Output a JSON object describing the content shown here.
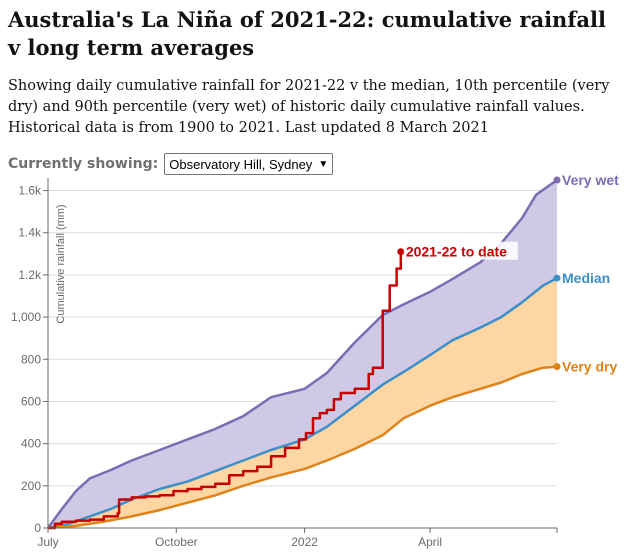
{
  "header": {
    "title": "Australia's La Niña of 2021-22: cumulative rainfall v long term averages",
    "subtitle": "Showing daily cumulative rainfall for 2021-22 v the median, 10th percentile (very dry) and 90th percentile (very wet) of historic daily cumulative rainfall values. Historical data is from 1900 to 2021. Last updated 8 March 2021"
  },
  "selector": {
    "label": "Currently showing:",
    "selected": "Observatory Hill, Sydney"
  },
  "colors": {
    "very_wet": "#7b6cb4",
    "median": "#3d8fc8",
    "very_dry": "#e0821a",
    "to_date": "#c70000",
    "wet_band": "#cfc9e6",
    "dry_band": "#fdd7a3",
    "axis": "#6b6b6b",
    "grid": "#dcdcdc"
  },
  "chart_data": {
    "type": "line",
    "ylabel": "Cumulative rainfall (mm)",
    "ylim": [
      0,
      1650
    ],
    "xlim": [
      0,
      365
    ],
    "x_unit": "day of season starting 1 July",
    "y_ticks": [
      {
        "value": 0,
        "label": "0"
      },
      {
        "value": 200,
        "label": "200"
      },
      {
        "value": 400,
        "label": "400"
      },
      {
        "value": 600,
        "label": "600"
      },
      {
        "value": 800,
        "label": "800"
      },
      {
        "value": 1000,
        "label": "1,000"
      },
      {
        "value": 1200,
        "label": "1.2k"
      },
      {
        "value": 1400,
        "label": "1.4k"
      },
      {
        "value": 1600,
        "label": "1.6k"
      }
    ],
    "x_ticks": [
      {
        "value": 0,
        "label": "July"
      },
      {
        "value": 92,
        "label": "October"
      },
      {
        "value": 184,
        "label": "2022"
      },
      {
        "value": 274,
        "label": "April"
      }
    ],
    "fill_bands": true,
    "grid": true,
    "series": [
      {
        "name": "Very wet",
        "key": "very_wet",
        "x": [
          0,
          10,
          20,
          30,
          45,
          60,
          80,
          100,
          120,
          140,
          160,
          184,
          200,
          220,
          240,
          255,
          274,
          290,
          310,
          325,
          340,
          350,
          365
        ],
        "y": [
          0,
          90,
          175,
          235,
          275,
          320,
          370,
          420,
          470,
          530,
          620,
          660,
          735,
          880,
          1010,
          1060,
          1120,
          1180,
          1260,
          1350,
          1470,
          1580,
          1650
        ]
      },
      {
        "name": "Median",
        "key": "median",
        "x": [
          0,
          15,
          30,
          45,
          60,
          80,
          100,
          120,
          140,
          160,
          184,
          200,
          220,
          240,
          255,
          274,
          290,
          310,
          325,
          340,
          355,
          365
        ],
        "y": [
          0,
          20,
          55,
          90,
          135,
          185,
          220,
          270,
          320,
          370,
          420,
          480,
          580,
          680,
          740,
          820,
          890,
          950,
          1000,
          1070,
          1150,
          1185
        ]
      },
      {
        "name": "Very dry",
        "key": "very_dry",
        "x": [
          0,
          20,
          40,
          60,
          80,
          100,
          120,
          140,
          160,
          184,
          200,
          220,
          240,
          255,
          274,
          290,
          310,
          325,
          340,
          355,
          365
        ],
        "y": [
          0,
          10,
          30,
          55,
          85,
          120,
          155,
          200,
          240,
          280,
          320,
          375,
          440,
          520,
          580,
          620,
          660,
          690,
          730,
          760,
          765
        ]
      },
      {
        "name": "2021-22 to date",
        "key": "to_date",
        "x": [
          0,
          5,
          10,
          20,
          30,
          40,
          50,
          51,
          60,
          70,
          80,
          90,
          95,
          100,
          110,
          120,
          125,
          130,
          140,
          150,
          160,
          170,
          180,
          185,
          190,
          195,
          200,
          205,
          210,
          220,
          230,
          233,
          240,
          245,
          250,
          253
        ],
        "y": [
          0,
          20,
          30,
          35,
          40,
          55,
          70,
          135,
          145,
          150,
          155,
          175,
          175,
          185,
          195,
          210,
          210,
          250,
          270,
          290,
          340,
          380,
          420,
          450,
          520,
          545,
          560,
          610,
          640,
          660,
          730,
          760,
          1030,
          1150,
          1230,
          1310
        ]
      }
    ],
    "annotations": [
      {
        "series": "very_wet",
        "text": "Very wet"
      },
      {
        "series": "median",
        "text": "Median"
      },
      {
        "series": "very_dry",
        "text": "Very dry"
      },
      {
        "series": "to_date",
        "text": "2021-22 to date"
      }
    ]
  }
}
